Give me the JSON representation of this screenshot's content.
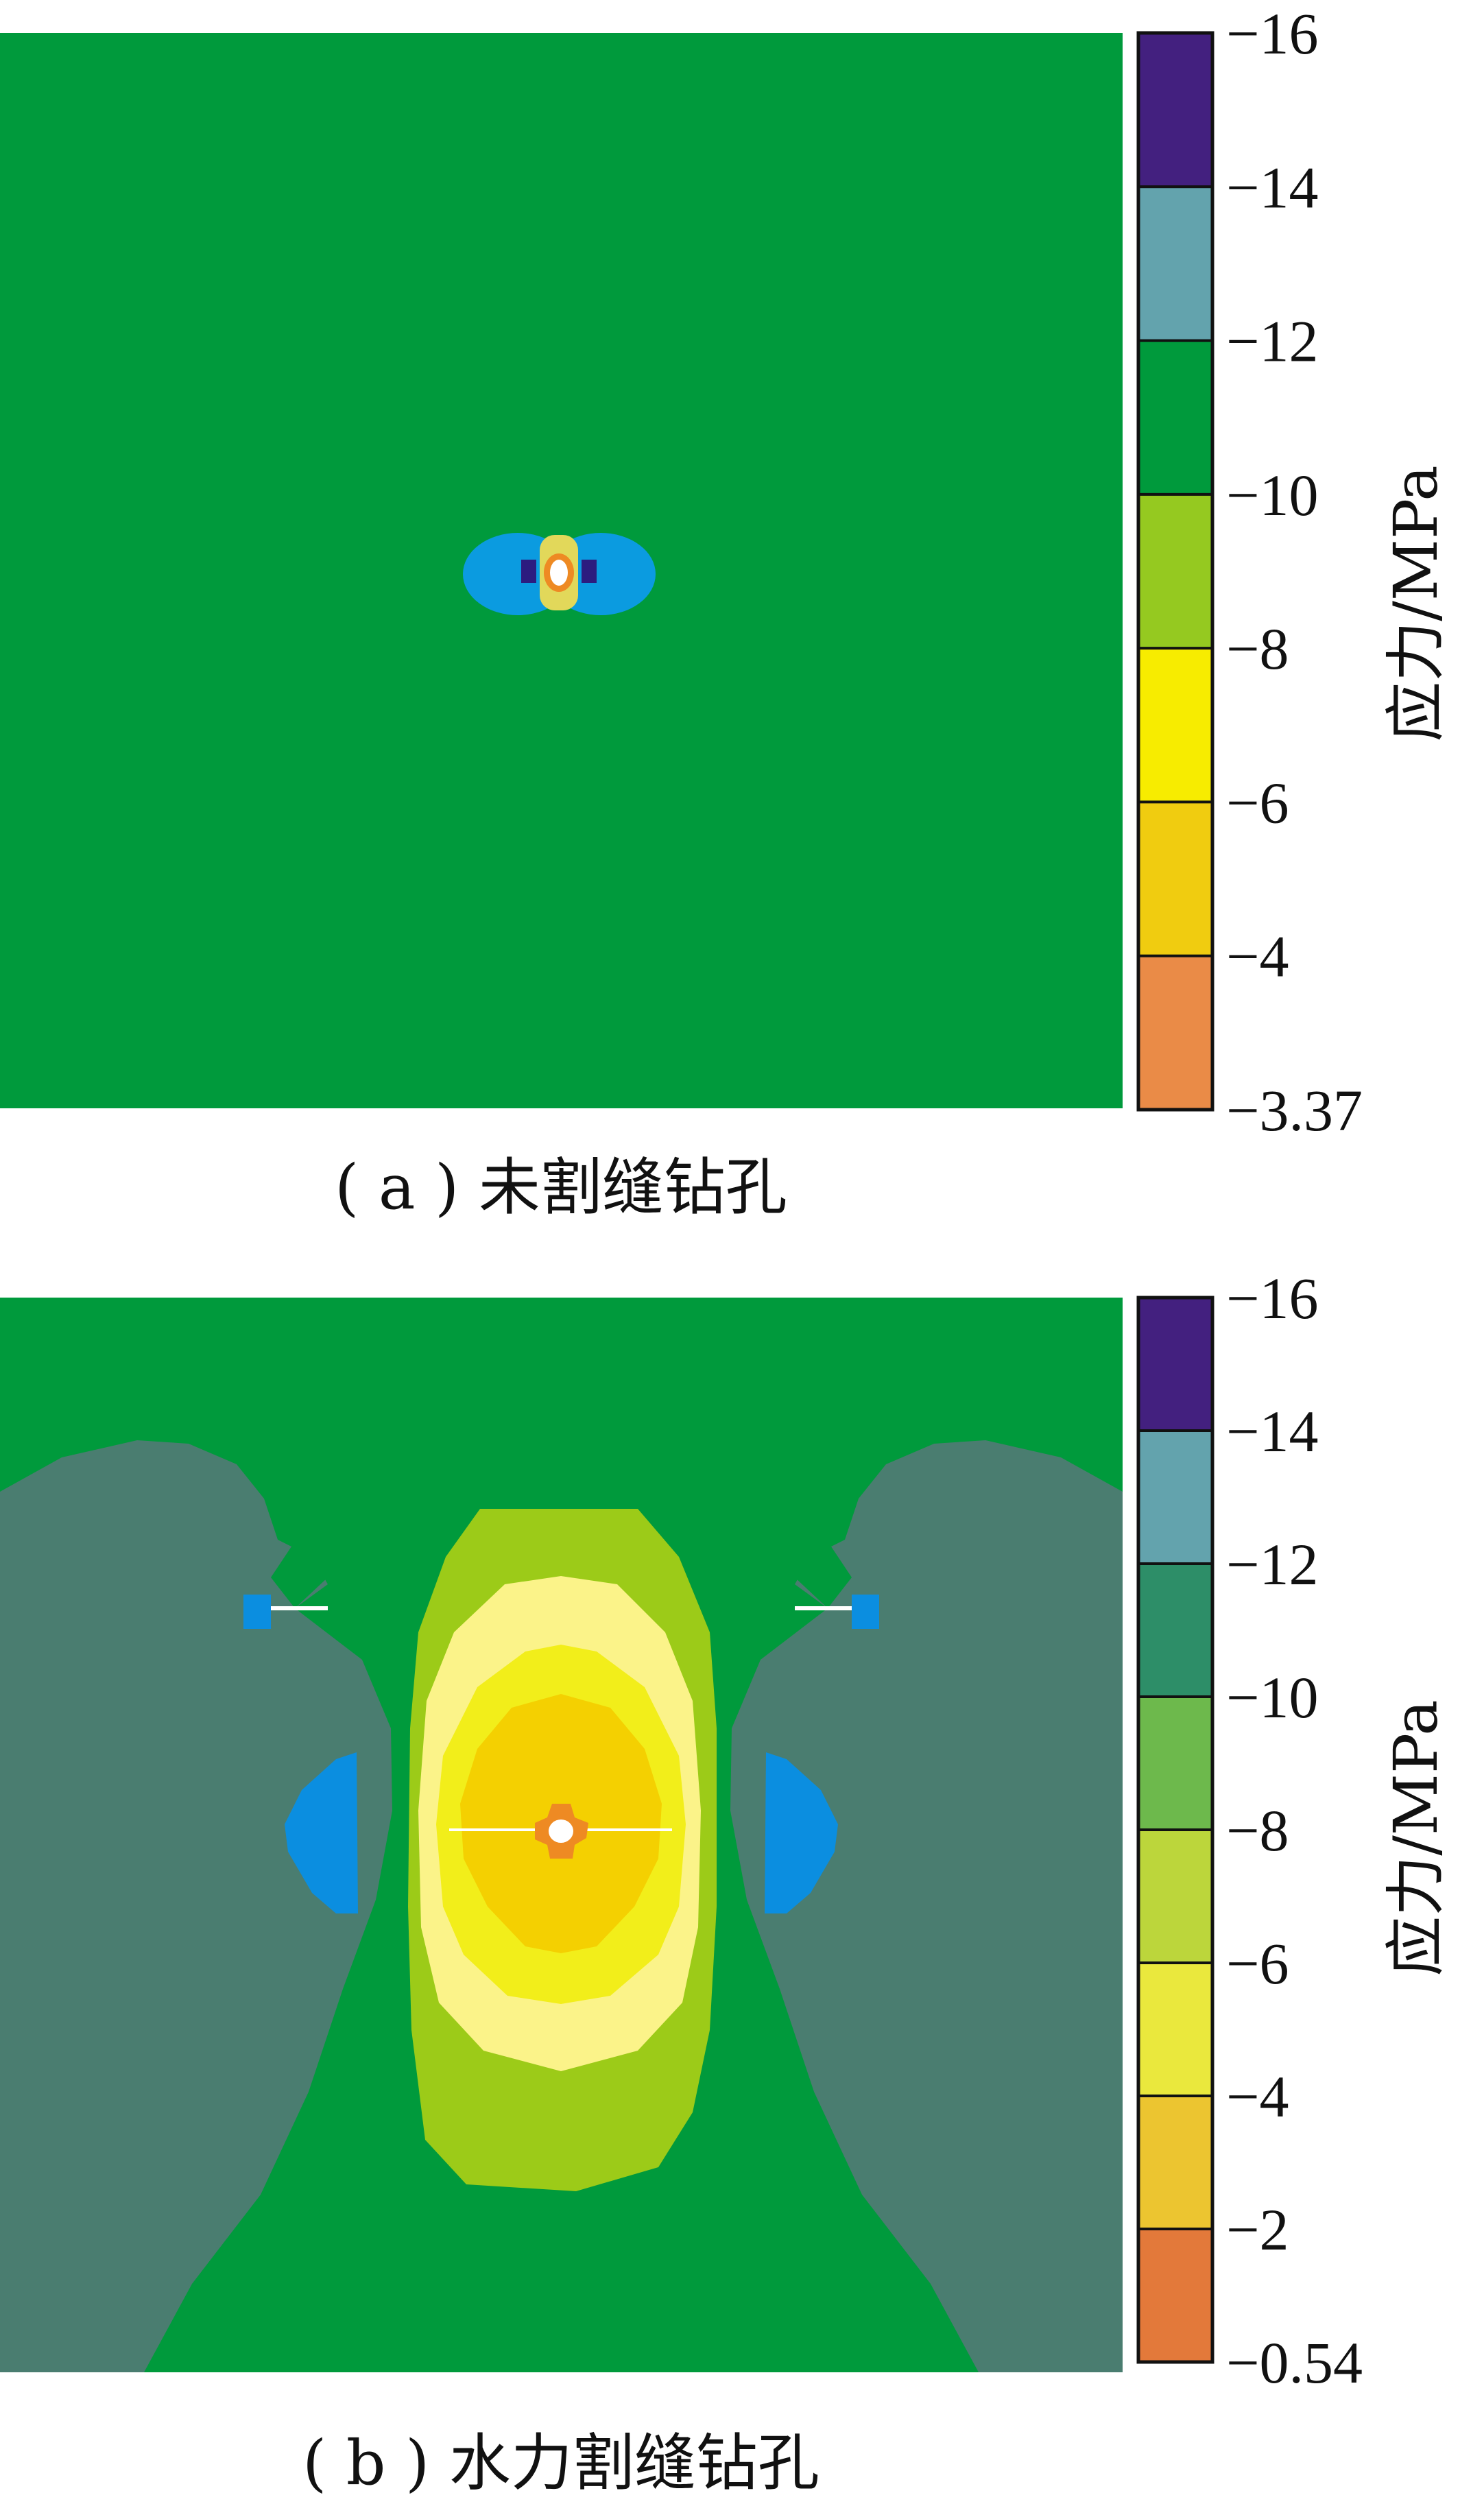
{
  "chart_data": [
    {
      "type": "heatmap",
      "caption": "( a ) 未割缝钻孔",
      "colorbar_label": "应力/MPa",
      "colorbar_ticks": [
        "−16",
        "−14",
        "−12",
        "−10",
        "−8",
        "−6",
        "−4",
        "−3.37"
      ],
      "colorbar_colors": [
        "#43207f",
        "#63a3ad",
        "#009a3c",
        "#95c920",
        "#f7ec00",
        "#f0cc10",
        "#ea8b47"
      ],
      "colors": {
        "field": "#009a3c",
        "lobe": "#0b9be0",
        "dark": "#2c1c7f",
        "ring_yellow": "#e2d85a",
        "ring_orange": "#ee8a23",
        "hole": "#ffffff"
      }
    },
    {
      "type": "heatmap",
      "caption": "( b ) 水力割缝钻孔",
      "colorbar_label": "应力/MPa",
      "colorbar_ticks": [
        "−16",
        "−14",
        "−12",
        "−10",
        "−8",
        "−6",
        "−4",
        "−2",
        "−0.54"
      ],
      "colorbar_colors": [
        "#43207f",
        "#63a3ad",
        "#2d8e68",
        "#6db94c",
        "#bcd63b",
        "#eae83d",
        "#ecc530",
        "#e3793a"
      ],
      "colors": {
        "field": "#009a3c",
        "side": "#4a7d70",
        "blue": "#0b8ee0",
        "c1": "#9ccb18",
        "c2": "#fbf389",
        "c3": "#f2ee1a",
        "c4": "#f4d001",
        "c5": "#ee8a23",
        "hole": "#ffffff",
        "line": "#ffffff"
      }
    }
  ]
}
